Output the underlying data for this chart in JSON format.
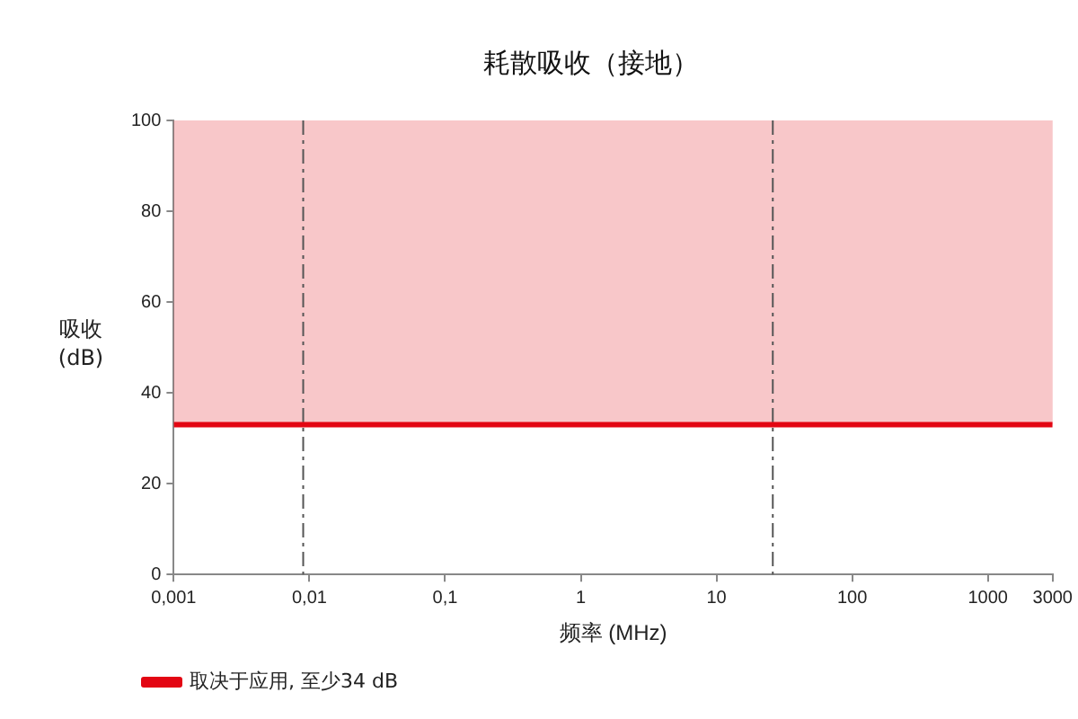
{
  "chart_data": {
    "type": "line",
    "title": "耗散吸收（接地）",
    "xlabel": "频率 (MHz)",
    "ylabel": "吸收\n(dB)",
    "x": [
      0.001,
      3000
    ],
    "series": [
      {
        "name": "取决于应用, 至少34 dB",
        "color": "#e30613",
        "values": [
          33,
          33
        ]
      }
    ],
    "log": "x",
    "xlim": [
      0.001,
      3000
    ],
    "xticks": [
      {
        "value": 0.001,
        "label": "0,001"
      },
      {
        "value": 0.01,
        "label": "0,01"
      },
      {
        "value": 0.1,
        "label": "0,1"
      },
      1,
      10,
      100,
      1000,
      3000
    ],
    "ylim": [
      0,
      100
    ],
    "yticks": [
      0,
      20,
      40,
      60,
      80,
      100
    ],
    "bands": [
      {
        "axis": "y",
        "from": 33,
        "to": 100,
        "color": "#e8474b"
      }
    ],
    "ref_lines": [
      {
        "axis": "x",
        "value": 0.009,
        "color": "#555555",
        "line_style": "dashdot"
      },
      {
        "axis": "x",
        "value": 26,
        "color": "#555555",
        "line_style": "dashdot"
      }
    ],
    "grid": false,
    "legend": "bottom left",
    "marker": "none",
    "line_style": "solid"
  }
}
